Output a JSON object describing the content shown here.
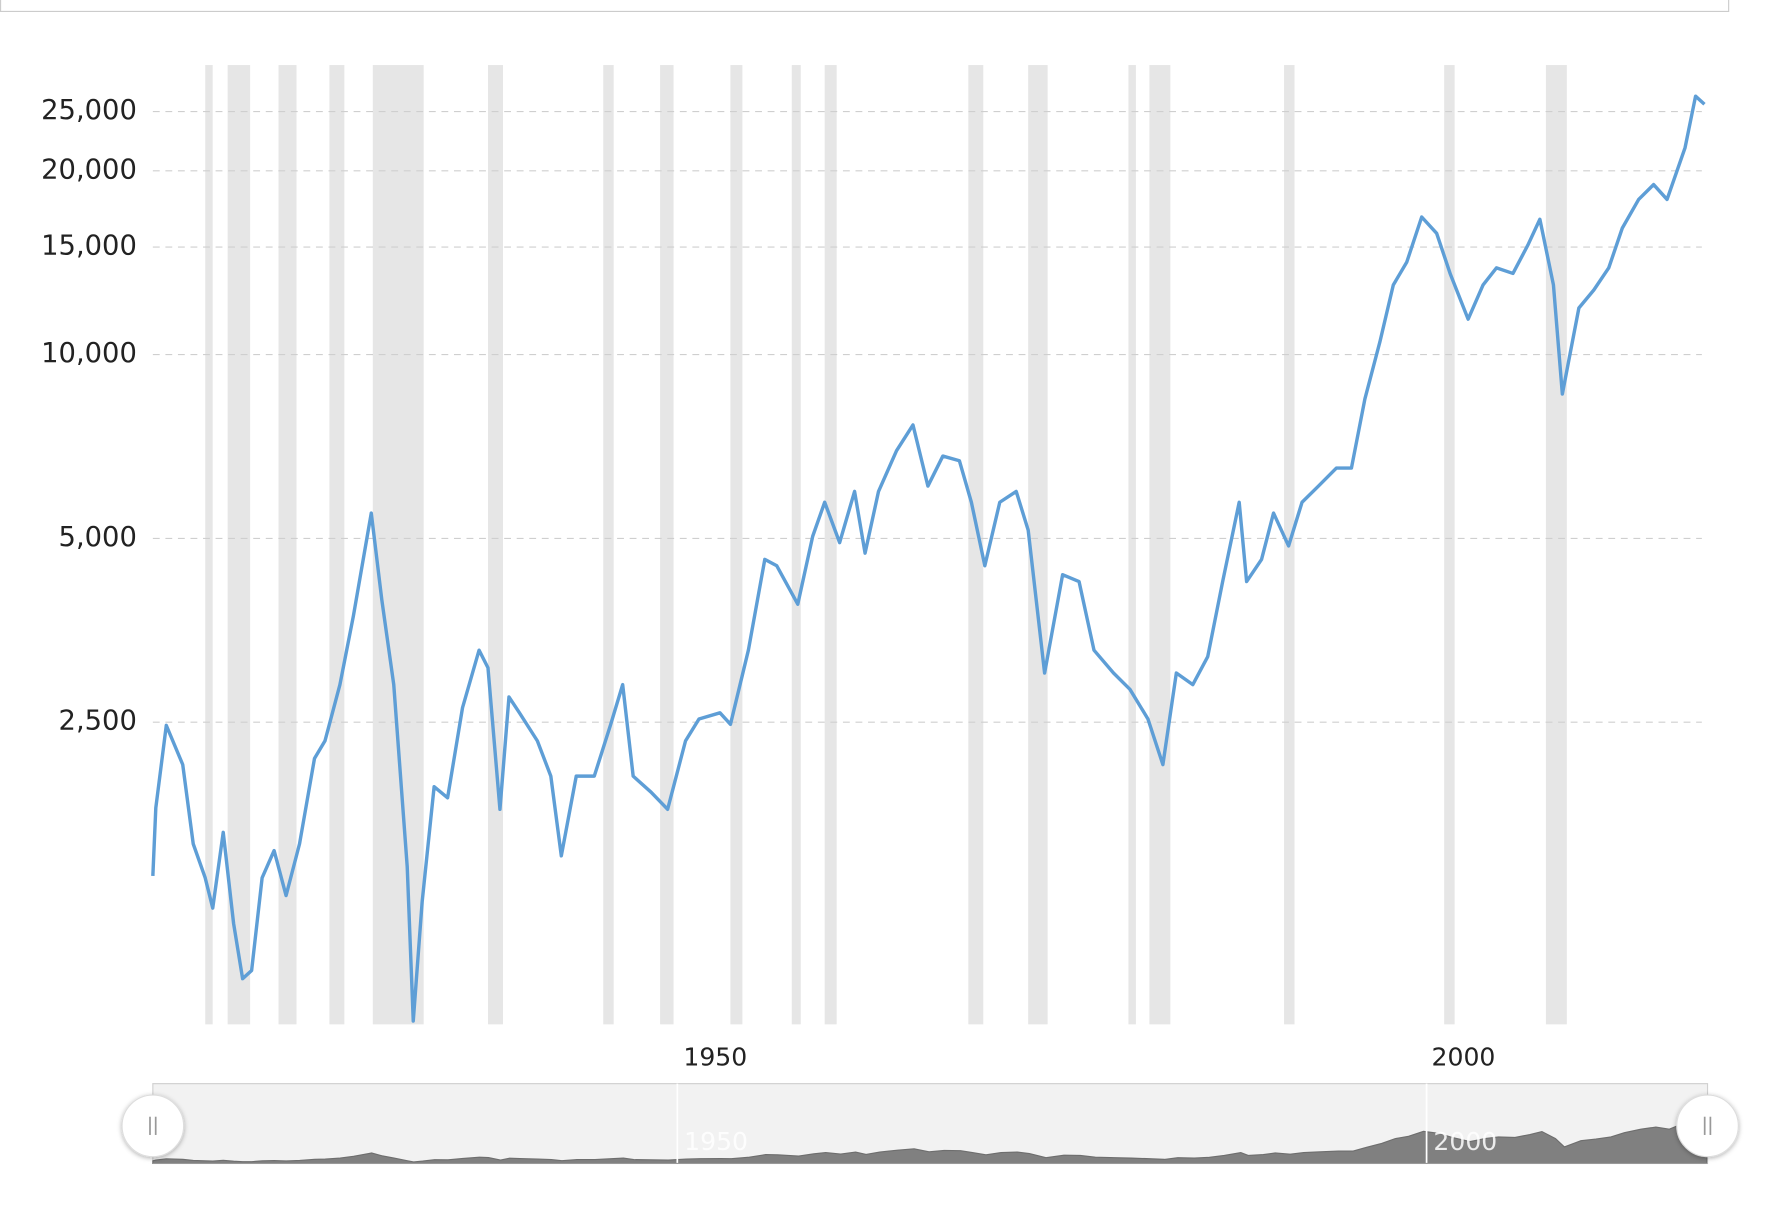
{
  "chart_data": {
    "type": "line",
    "log_scale": true,
    "grid": true,
    "color": "#5e9ed6",
    "x": [
      1915.0,
      1915.2,
      1915.9,
      1917.0,
      1917.7,
      1918.5,
      1919.0,
      1919.7,
      1920.4,
      1921.0,
      1921.6,
      1922.3,
      1923.1,
      1923.9,
      1924.8,
      1925.8,
      1926.5,
      1927.5,
      1928.4,
      1929.4,
      1929.6,
      1930.3,
      1931.1,
      1932.0,
      1932.4,
      1933.0,
      1933.8,
      1934.7,
      1935.7,
      1936.8,
      1937.4,
      1938.2,
      1938.8,
      1939.5,
      1940.7,
      1941.6,
      1942.3,
      1943.3,
      1944.5,
      1945.6,
      1946.4,
      1947.1,
      1948.3,
      1949.4,
      1950.6,
      1951.5,
      1952.9,
      1953.6,
      1954.8,
      1955.9,
      1956.7,
      1958.1,
      1959.1,
      1959.9,
      1960.9,
      1961.9,
      1962.6,
      1963.5,
      1964.7,
      1965.8,
      1966.8,
      1967.8,
      1968.9,
      1969.7,
      1970.6,
      1971.6,
      1972.7,
      1973.5,
      1974.6,
      1975.8,
      1976.9,
      1977.9,
      1979.2,
      1980.3,
      1981.5,
      1982.5,
      1983.4,
      1984.5,
      1985.5,
      1986.5,
      1987.6,
      1988.1,
      1989.1,
      1989.9,
      1990.9,
      1991.8,
      1992.9,
      1994.1,
      1995.1,
      1996.0,
      1997.0,
      1997.9,
      1998.8,
      1999.8,
      2000.8,
      2001.7,
      2002.9,
      2003.9,
      2004.8,
      2005.9,
      2006.9,
      2007.7,
      2008.6,
      2009.2,
      2010.3,
      2011.3,
      2012.3,
      2013.2,
      2014.3,
      2015.3,
      2016.2,
      2017.4,
      2018.1,
      2018.7
    ],
    "values": [
      1400,
      1810,
      2470,
      2130,
      1580,
      1390,
      1240,
      1650,
      1170,
      950,
      980,
      1390,
      1540,
      1300,
      1580,
      2180,
      2330,
      2880,
      3730,
      5160,
      5500,
      3970,
      2880,
      1450,
      810,
      1270,
      1960,
      1880,
      2640,
      3280,
      3070,
      1800,
      2750,
      2590,
      2330,
      2040,
      1510,
      2040,
      2040,
      2480,
      2880,
      2040,
      1920,
      1800,
      2330,
      2530,
      2590,
      2480,
      3280,
      4620,
      4510,
      3900,
      5040,
      5730,
      4920,
      5970,
      4730,
      5970,
      6960,
      7670,
      6090,
      6820,
      6700,
      5730,
      4510,
      5730,
      5970,
      5160,
      3010,
      4360,
      4250,
      3280,
      3010,
      2830,
      2530,
      2130,
      3010,
      2880,
      3200,
      4250,
      5730,
      4250,
      4620,
      5500,
      4860,
      5730,
      6090,
      6520,
      6520,
      8460,
      10480,
      13000,
      14170,
      16800,
      15800,
      13580,
      11430,
      13000,
      13870,
      13580,
      15130,
      16660,
      13000,
      8620,
      11920,
      12760,
      13870,
      16100,
      17950,
      18990,
      17950,
      21830,
      26500,
      25700
    ],
    "shaded_ranges": [
      [
        1918.5,
        1919.0
      ],
      [
        1920.0,
        1921.5
      ],
      [
        1923.4,
        1924.6
      ],
      [
        1926.8,
        1927.8
      ],
      [
        1929.7,
        1933.1
      ],
      [
        1937.4,
        1938.4
      ],
      [
        1945.1,
        1945.8
      ],
      [
        1948.9,
        1949.8
      ],
      [
        1953.6,
        1954.4
      ],
      [
        1957.7,
        1958.3
      ],
      [
        1959.9,
        1960.7
      ],
      [
        1969.5,
        1970.5
      ],
      [
        1973.5,
        1974.8
      ],
      [
        1980.2,
        1980.7
      ],
      [
        1981.6,
        1983.0
      ],
      [
        1990.6,
        1991.3
      ],
      [
        2001.3,
        2002.0
      ],
      [
        2008.1,
        2009.5
      ]
    ],
    "shade_color": "#e6e6e6",
    "xlim": [
      1915.0,
      2018.75
    ],
    "xticks": [
      1950,
      2000
    ],
    "ylim": [
      800,
      29800
    ],
    "yticks": [
      {
        "value": 2500,
        "label": "2,500"
      },
      {
        "value": 5000,
        "label": "5,000"
      },
      {
        "value": 10000,
        "label": "10,000"
      },
      {
        "value": 15000,
        "label": "15,000"
      },
      {
        "value": 20000,
        "label": "20,000"
      },
      {
        "value": 25000,
        "label": "25,000"
      }
    ],
    "navigator_color": "#808080"
  }
}
